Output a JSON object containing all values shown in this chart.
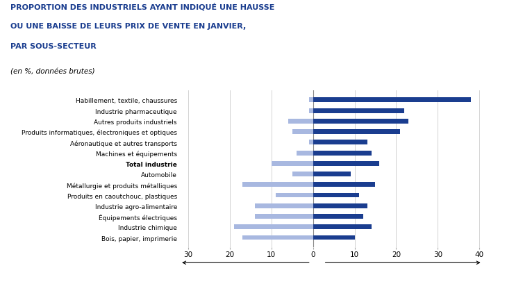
{
  "title_line1": "PROPORTION DES INDUSTRIELS AYANT INDIQUÉ UNE HAUSSE",
  "title_line2": "OU UNE BAISSE DE LEURS PRIX DE VENTE EN JANVIER,",
  "title_line3": "PAR SOUS-SECTEUR",
  "subtitle": "(en %, données brutes)",
  "categories": [
    "Habillement, textile, chaussures",
    "Industrie pharmaceutique",
    "Autres produits industriels",
    "Produits informatiques, électroniques et optiques",
    "Aéronautique et autres transports",
    "Machines et équipements",
    "Total industrie",
    "Automobile",
    "Métallurgie et produits métalliques",
    "Produits en caoutchouc, plastiques",
    "Industrie agro-alimentaire",
    "Équipements électriques",
    "Industrie chimique",
    "Bois, papier, imprimerie"
  ],
  "hausse": [
    38,
    22,
    23,
    21,
    13,
    14,
    16,
    9,
    15,
    11,
    13,
    12,
    14,
    10
  ],
  "baisse": [
    1,
    1,
    6,
    5,
    1,
    4,
    10,
    5,
    17,
    9,
    14,
    14,
    19,
    17
  ],
  "hausse_color": "#1a3d8f",
  "baisse_color": "#a8b8e0",
  "title_color": "#1a3d8f",
  "xlim_left": -32,
  "xlim_right": 43,
  "xticks": [
    -30,
    -20,
    -10,
    0,
    10,
    20,
    30,
    40
  ],
  "xticklabels": [
    "30",
    "20",
    "10",
    "0",
    "10",
    "20",
    "30",
    "40"
  ],
  "bar_height": 0.45,
  "background_color": "#ffffff",
  "total_industrie_index": 6
}
